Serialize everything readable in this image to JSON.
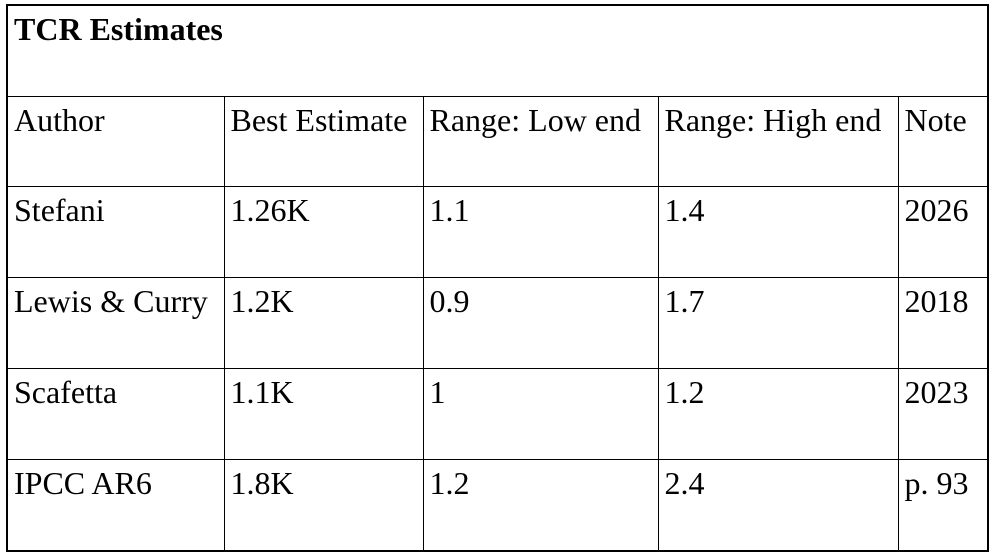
{
  "page": {
    "background": "#ffffff"
  },
  "table": {
    "title": "TCR Estimates",
    "columns": [
      "Author",
      "Best Estimate",
      "Range: Low end",
      "Range: High end",
      "Note"
    ],
    "rows": [
      [
        "Stefani",
        "1.26K",
        "1.1",
        "1.4",
        "2026"
      ],
      [
        "Lewis & Curry",
        "1.2K",
        "0.9",
        "1.7",
        "2018"
      ],
      [
        "Scafetta",
        "1.1K",
        "1",
        "1.2",
        "2023"
      ],
      [
        "IPCC AR6",
        "1.8K",
        "1.2",
        "2.4",
        "p. 93"
      ]
    ],
    "colors": {
      "border": "#000000",
      "text": "#000000",
      "background": "#ffffff"
    }
  }
}
